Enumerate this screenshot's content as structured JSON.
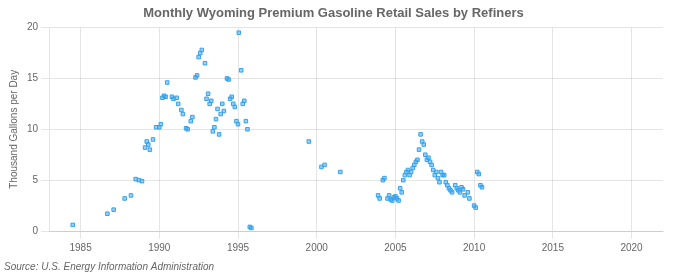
{
  "chart_data": {
    "type": "scatter",
    "title": "Monthly Wyoming Premium Gasoline Retail Sales by Refiners",
    "y_label": "Thousand Gallons per Day",
    "annotations": [
      "Source: U.S. Energy Information Administration"
    ],
    "marker": "square",
    "grid": true,
    "xlim": [
      1983,
      2022
    ],
    "ylim": [
      0,
      20
    ],
    "xticks": [
      1985,
      1990,
      1995,
      2000,
      2005,
      2010,
      2015,
      2020
    ],
    "yticks": [
      0,
      5,
      10,
      15,
      20
    ],
    "x": [
      1984.5,
      1986.7,
      1987.1,
      1987.8,
      1988.2,
      1988.5,
      1988.7,
      1988.9,
      1989.1,
      1989.2,
      1989.3,
      1989.4,
      1989.6,
      1989.8,
      1990.0,
      1990.1,
      1990.2,
      1990.3,
      1990.4,
      1990.5,
      1990.8,
      1990.9,
      1991.1,
      1991.2,
      1991.4,
      1991.5,
      1991.7,
      1991.8,
      1992.0,
      1992.1,
      1992.3,
      1992.4,
      1992.5,
      1992.6,
      1992.7,
      1992.9,
      1993.0,
      1993.1,
      1993.2,
      1993.3,
      1993.4,
      1993.5,
      1993.6,
      1993.7,
      1993.9,
      1994.0,
      1994.1,
      1994.3,
      1994.4,
      1994.5,
      1994.6,
      1994.7,
      1994.8,
      1994.9,
      1995.0,
      1995.05,
      1995.2,
      1995.3,
      1995.4,
      1995.5,
      1995.6,
      1993.8,
      1995.75,
      1995.85,
      1999.5,
      2000.3,
      2000.5,
      2001.5,
      2003.9,
      2004.0,
      2004.2,
      2004.3,
      2004.5,
      2004.6,
      2004.7,
      2004.8,
      2004.9,
      2005.0,
      2005.1,
      2005.2,
      2005.3,
      2005.4,
      2005.5,
      2005.6,
      2005.7,
      2005.8,
      2005.9,
      2006.0,
      2006.1,
      2006.2,
      2006.3,
      2006.4,
      2006.5,
      2006.6,
      2006.7,
      2006.8,
      2006.9,
      2007.0,
      2007.1,
      2007.2,
      2007.3,
      2007.4,
      2007.5,
      2007.6,
      2007.7,
      2007.8,
      2007.9,
      2008.0,
      2008.1,
      2008.2,
      2008.3,
      2008.4,
      2008.5,
      2008.6,
      2008.8,
      2008.9,
      2009.0,
      2009.1,
      2009.2,
      2009.3,
      2009.4,
      2009.6,
      2009.7,
      2010.0,
      2010.1,
      2010.2,
      2010.3,
      2010.4,
      2010.5
    ],
    "values": [
      0.6,
      1.7,
      2.1,
      3.2,
      3.5,
      5.1,
      5.0,
      4.9,
      8.2,
      8.8,
      8.5,
      8.0,
      9.0,
      10.2,
      10.2,
      10.5,
      13.1,
      13.3,
      13.2,
      14.6,
      13.2,
      13.0,
      13.1,
      12.5,
      11.9,
      11.5,
      10.1,
      10.0,
      10.8,
      11.2,
      15.1,
      15.3,
      17.1,
      17.5,
      17.8,
      16.5,
      13.0,
      13.5,
      12.5,
      12.8,
      9.8,
      10.2,
      11.0,
      12.0,
      11.5,
      12.5,
      11.8,
      15.0,
      14.9,
      13.0,
      13.2,
      12.5,
      12.2,
      10.8,
      10.5,
      19.5,
      15.8,
      12.5,
      12.8,
      10.8,
      10.0,
      9.5,
      0.4,
      0.3,
      8.8,
      6.3,
      6.5,
      5.8,
      3.5,
      3.2,
      5.0,
      5.2,
      3.2,
      3.5,
      3.1,
      3.0,
      3.3,
      3.4,
      3.2,
      3.0,
      4.2,
      3.8,
      5.0,
      5.5,
      5.8,
      6.0,
      5.5,
      5.8,
      6.2,
      6.5,
      6.8,
      7.0,
      8.0,
      9.5,
      8.8,
      8.5,
      7.5,
      7.0,
      7.2,
      6.8,
      6.5,
      6.0,
      5.5,
      5.8,
      5.2,
      4.8,
      5.8,
      5.5,
      5.5,
      4.8,
      4.5,
      4.2,
      4.0,
      3.8,
      4.5,
      4.2,
      4.0,
      3.8,
      4.3,
      4.1,
      3.5,
      3.8,
      3.2,
      2.5,
      2.3,
      5.8,
      5.6,
      4.5,
      4.3
    ]
  }
}
